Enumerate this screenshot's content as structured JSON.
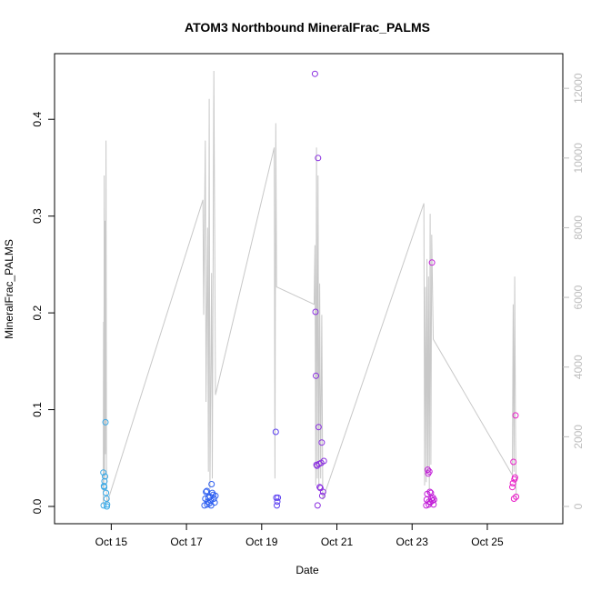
{
  "chart_data": {
    "type": "scatter",
    "title": "ATOM3 Northbound MineralFrac_PALMS",
    "xlabel": "Date",
    "ylabel": "MineralFrac_PALMS",
    "xlim": [
      "2017-10-14 00:00",
      "2017-10-26 12:00"
    ],
    "ylim": [
      0,
      0.45
    ],
    "y2lim": [
      0,
      12500
    ],
    "x_ticks": [
      "Oct 15",
      "Oct 17",
      "Oct 19",
      "Oct 21",
      "Oct 23",
      "Oct 25"
    ],
    "x_tick_dates": [
      "2017-10-15",
      "2017-10-17",
      "2017-10-19",
      "2017-10-21",
      "2017-10-23",
      "2017-10-25"
    ],
    "y_ticks": [
      "0.0",
      "0.1",
      "0.2",
      "0.3",
      "0.4"
    ],
    "y2_ticks": [
      "0",
      "2000",
      "4000",
      "6000",
      "8000",
      "10000",
      "12000"
    ],
    "grid": false,
    "colors": {
      "axis": "#000000",
      "altitude_line": "#c8c8c8",
      "right_axis": "#bdbdbd"
    },
    "series": [
      {
        "color": "#3aa9e6",
        "points": [
          [
            "2017-10-14 19:00",
            0.035
          ],
          [
            "2017-10-14 19:20",
            0.021
          ],
          [
            "2017-10-14 19:40",
            0.026
          ],
          [
            "2017-10-14 20:00",
            0.031
          ],
          [
            "2017-10-14 20:20",
            0.087
          ],
          [
            "2017-10-14 20:40",
            0.014
          ],
          [
            "2017-10-14 21:00",
            0.008
          ],
          [
            "2017-10-14 21:20",
            0.002
          ],
          [
            "2017-10-14 19:10",
            0.001
          ],
          [
            "2017-10-14 21:10",
            0.0
          ],
          [
            "2017-10-14 19:30",
            0.02
          ]
        ]
      },
      {
        "color": "#2e5ff0",
        "points": [
          [
            "2017-10-17 11:30",
            0.001
          ],
          [
            "2017-10-17 12:00",
            0.008
          ],
          [
            "2017-10-17 12:30",
            0.015
          ],
          [
            "2017-10-17 13:00",
            0.016
          ],
          [
            "2017-10-17 13:30",
            0.005
          ],
          [
            "2017-10-17 14:00",
            0.009
          ],
          [
            "2017-10-17 14:30",
            0.003
          ],
          [
            "2017-10-17 15:00",
            0.01
          ],
          [
            "2017-10-17 15:30",
            0.006
          ],
          [
            "2017-10-17 16:00",
            0.023
          ],
          [
            "2017-10-17 16:30",
            0.014
          ],
          [
            "2017-10-17 17:00",
            0.012
          ],
          [
            "2017-10-17 17:30",
            0.008
          ],
          [
            "2017-10-17 18:00",
            0.004
          ],
          [
            "2017-10-17 18:30",
            0.011
          ],
          [
            "2017-10-17 13:15",
            0.002
          ],
          [
            "2017-10-17 15:45",
            0.001
          ]
        ]
      },
      {
        "color": "#5a3ef0",
        "points": [
          [
            "2017-10-19 09:00",
            0.077
          ],
          [
            "2017-10-19 09:20",
            0.009
          ],
          [
            "2017-10-19 09:40",
            0.001
          ],
          [
            "2017-10-19 10:00",
            0.005
          ],
          [
            "2017-10-19 10:20",
            0.009
          ]
        ]
      },
      {
        "color": "#8a2ee0",
        "points": [
          [
            "2017-10-20 10:00",
            0.447
          ],
          [
            "2017-10-20 10:20",
            0.201
          ],
          [
            "2017-10-20 10:40",
            0.135
          ],
          [
            "2017-10-20 11:00",
            0.043
          ],
          [
            "2017-10-20 11:20",
            0.042
          ],
          [
            "2017-10-20 11:40",
            0.001
          ],
          [
            "2017-10-20 12:00",
            0.36
          ],
          [
            "2017-10-20 12:20",
            0.082
          ],
          [
            "2017-10-20 12:40",
            0.044
          ],
          [
            "2017-10-20 13:00",
            0.02
          ],
          [
            "2017-10-20 13:30",
            0.019
          ],
          [
            "2017-10-20 14:00",
            0.045
          ],
          [
            "2017-10-20 14:20",
            0.066
          ],
          [
            "2017-10-20 14:40",
            0.011
          ],
          [
            "2017-10-20 15:10",
            0.015
          ],
          [
            "2017-10-20 15:40",
            0.047
          ]
        ]
      },
      {
        "color": "#c21ed8",
        "points": [
          [
            "2017-10-23 09:00",
            0.001
          ],
          [
            "2017-10-23 09:20",
            0.007
          ],
          [
            "2017-10-23 09:40",
            0.013
          ],
          [
            "2017-10-23 10:00",
            0.038
          ],
          [
            "2017-10-23 10:20",
            0.034
          ],
          [
            "2017-10-23 10:40",
            0.002
          ],
          [
            "2017-10-23 11:00",
            0.036
          ],
          [
            "2017-10-23 11:20",
            0.015
          ],
          [
            "2017-10-23 11:40",
            0.004
          ],
          [
            "2017-10-23 12:00",
            0.014
          ],
          [
            "2017-10-23 12:20",
            0.008
          ],
          [
            "2017-10-23 12:40",
            0.252
          ],
          [
            "2017-10-23 13:00",
            0.006
          ],
          [
            "2017-10-23 13:20",
            0.009
          ],
          [
            "2017-10-23 13:40",
            0.002
          ],
          [
            "2017-10-23 14:00",
            0.007
          ],
          [
            "2017-10-23 10:50",
            0.005
          ]
        ]
      },
      {
        "color": "#e81ec8",
        "points": [
          [
            "2017-10-25 16:00",
            0.02
          ],
          [
            "2017-10-25 16:20",
            0.024
          ],
          [
            "2017-10-25 16:40",
            0.046
          ],
          [
            "2017-10-25 17:00",
            0.008
          ],
          [
            "2017-10-25 17:20",
            0.028
          ],
          [
            "2017-10-25 17:40",
            0.03
          ],
          [
            "2017-10-25 18:00",
            0.094
          ],
          [
            "2017-10-25 18:20",
            0.01
          ]
        ]
      }
    ],
    "altitude_trace": [
      [
        "2017-10-14 18:50",
        50
      ],
      [
        "2017-10-14 19:05",
        5300
      ],
      [
        "2017-10-14 19:15",
        500
      ],
      [
        "2017-10-14 19:30",
        9500
      ],
      [
        "2017-10-14 19:45",
        800
      ],
      [
        "2017-10-14 20:00",
        8200
      ],
      [
        "2017-10-14 20:20",
        1500
      ],
      [
        "2017-10-14 20:40",
        10500
      ],
      [
        "2017-10-14 21:00",
        300
      ],
      [
        "2017-10-14 21:20",
        100
      ],
      [
        "2017-10-17 10:30",
        8800
      ],
      [
        "2017-10-17 11:00",
        5500
      ],
      [
        "2017-10-17 12:00",
        10500
      ],
      [
        "2017-10-17 12:30",
        3000
      ],
      [
        "2017-10-17 13:30",
        8000
      ],
      [
        "2017-10-17 14:00",
        1000
      ],
      [
        "2017-10-17 14:30",
        11700
      ],
      [
        "2017-10-17 15:00",
        500
      ],
      [
        "2017-10-17 16:00",
        6700
      ],
      [
        "2017-10-17 16:30",
        800
      ],
      [
        "2017-10-17 17:30",
        12500
      ],
      [
        "2017-10-17 18:30",
        3200
      ],
      [
        "2017-10-19 08:00",
        10300
      ],
      [
        "2017-10-19 08:30",
        800
      ],
      [
        "2017-10-19 09:00",
        11000
      ],
      [
        "2017-10-19 09:30",
        6300
      ],
      [
        "2017-10-20 09:30",
        5800
      ],
      [
        "2017-10-20 10:00",
        7500
      ],
      [
        "2017-10-20 10:30",
        600
      ],
      [
        "2017-10-20 11:00",
        10300
      ],
      [
        "2017-10-20 11:30",
        800
      ],
      [
        "2017-10-20 12:00",
        9500
      ],
      [
        "2017-10-20 12:30",
        500
      ],
      [
        "2017-10-20 13:00",
        6400
      ],
      [
        "2017-10-20 13:40",
        800
      ],
      [
        "2017-10-20 14:20",
        5500
      ],
      [
        "2017-10-20 15:00",
        200
      ],
      [
        "2017-10-23 07:30",
        8700
      ],
      [
        "2017-10-23 08:00",
        600
      ],
      [
        "2017-10-23 08:30",
        6300
      ],
      [
        "2017-10-23 09:00",
        700
      ],
      [
        "2017-10-23 09:30",
        7100
      ],
      [
        "2017-10-23 10:00",
        1000
      ],
      [
        "2017-10-23 10:30",
        6600
      ],
      [
        "2017-10-23 11:00",
        500
      ],
      [
        "2017-10-23 11:30",
        8400
      ],
      [
        "2017-10-23 12:00",
        1200
      ],
      [
        "2017-10-23 12:30",
        7800
      ],
      [
        "2017-10-23 13:30",
        4800
      ],
      [
        "2017-10-25 16:00",
        900
      ],
      [
        "2017-10-25 16:30",
        5800
      ],
      [
        "2017-10-25 17:00",
        1000
      ],
      [
        "2017-10-25 17:30",
        6600
      ],
      [
        "2017-10-25 18:00",
        2000
      ],
      [
        "2017-10-25 18:30",
        200
      ]
    ]
  }
}
